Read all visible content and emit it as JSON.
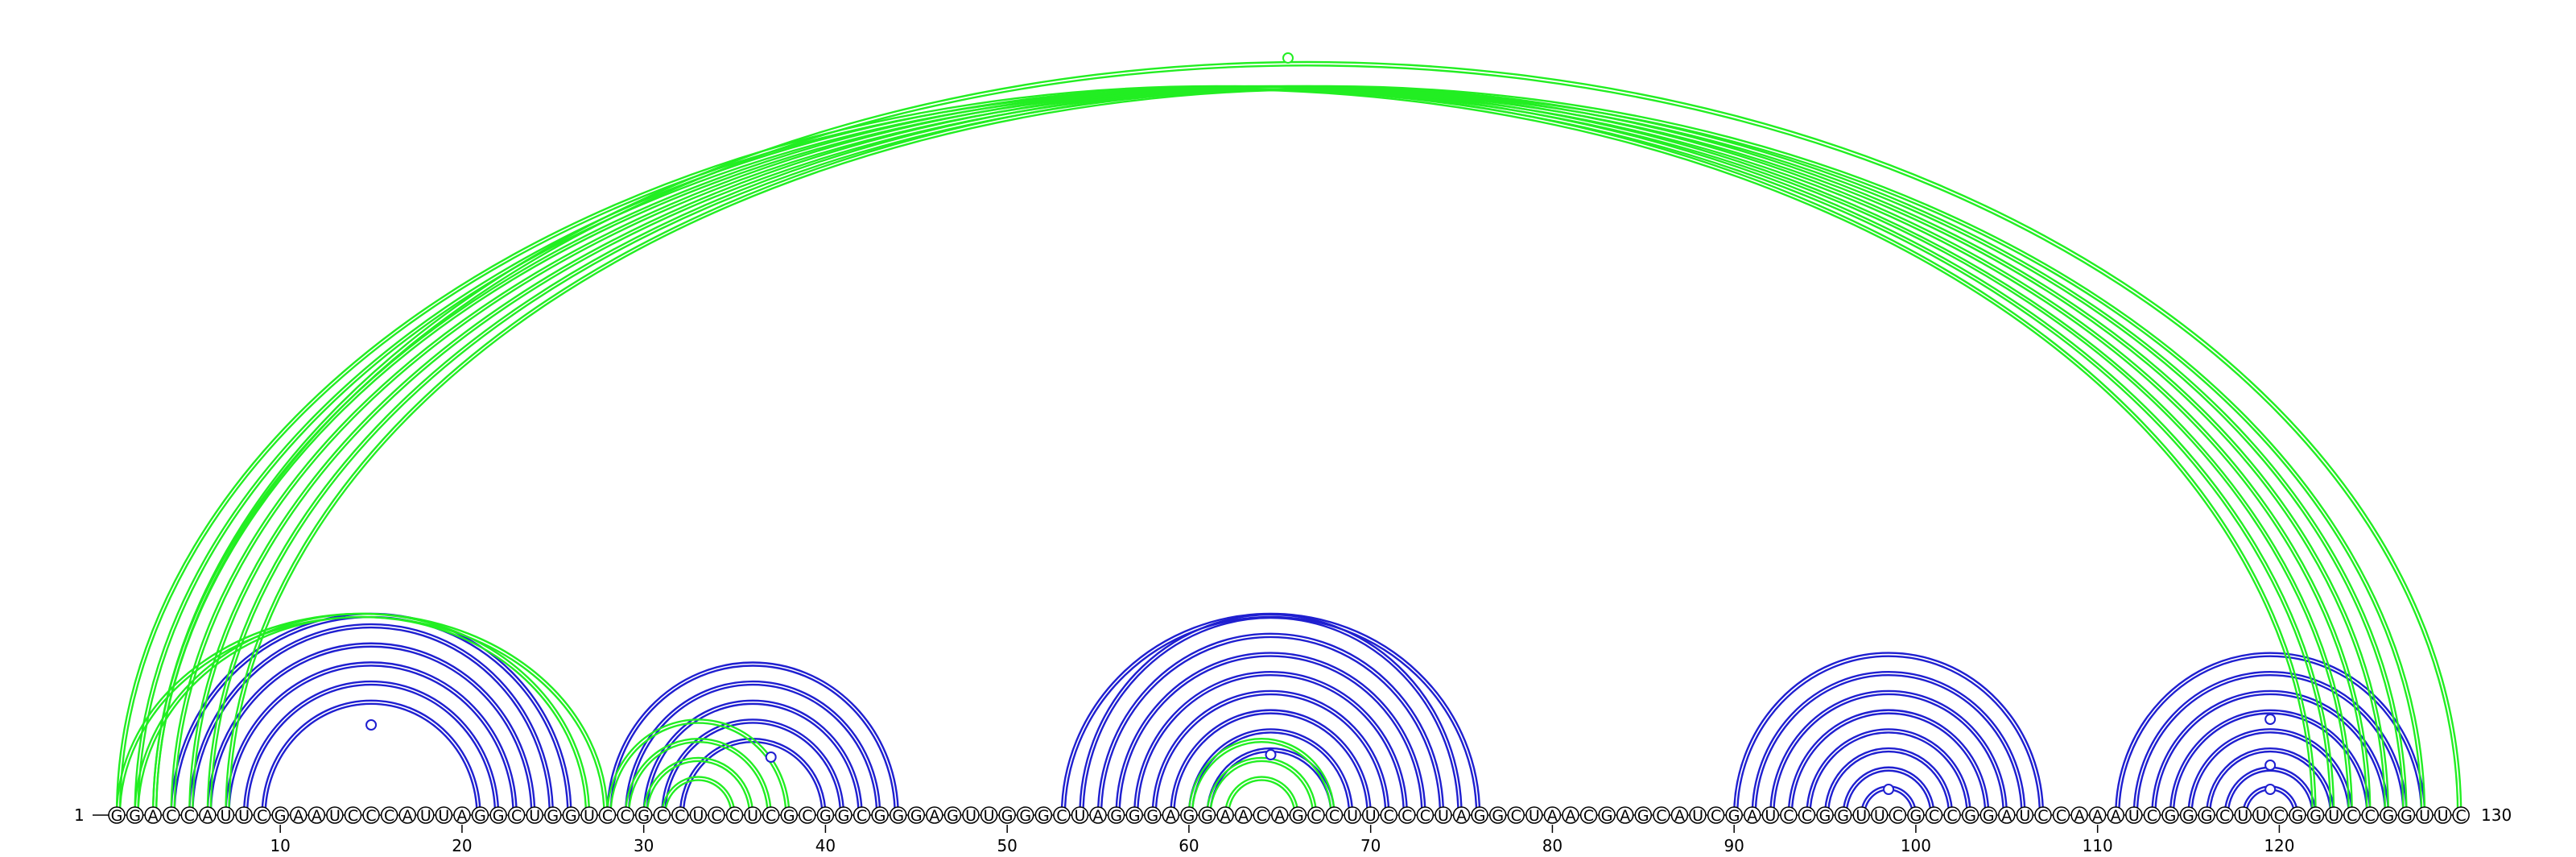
{
  "sequence": "GGACCAUUCGAAUCCCAUUAGGCUGGUCCGCCUCCUCGCGGCGGGAGUUGGGCUAGGGAGGAACAGCCUUCCCUAGGCUAACGAGCAUCGAUCCGGUUCGCCGGAUCCAAAUCGGGCUUCGGUCCGGUUC",
  "start_label": "1",
  "end_label": "130",
  "ticks": [
    "10",
    "20",
    "30",
    "40",
    "50",
    "60",
    "70",
    "80",
    "90",
    "100",
    "110",
    "120"
  ],
  "colors": {
    "blue": "#1f1fd0",
    "green": "#22ee22"
  },
  "chart_data": {
    "type": "arc-diagram",
    "length": 130,
    "blue_pairs": [
      [
        4,
        26
      ],
      [
        5,
        25
      ],
      [
        6,
        24
      ],
      [
        7,
        23
      ],
      [
        8,
        22
      ],
      [
        9,
        21
      ],
      [
        28,
        44
      ],
      [
        29,
        43
      ],
      [
        30,
        42
      ],
      [
        31,
        41
      ],
      [
        32,
        40
      ],
      [
        53,
        76
      ],
      [
        54,
        75
      ],
      [
        55,
        74
      ],
      [
        56,
        73
      ],
      [
        57,
        72
      ],
      [
        58,
        71
      ],
      [
        59,
        70
      ],
      [
        60,
        69
      ],
      [
        61,
        68
      ],
      [
        90,
        107
      ],
      [
        91,
        106
      ],
      [
        92,
        105
      ],
      [
        93,
        104
      ],
      [
        94,
        103
      ],
      [
        95,
        102
      ],
      [
        96,
        101
      ],
      [
        97,
        100
      ],
      [
        111,
        128
      ],
      [
        112,
        127
      ],
      [
        113,
        126
      ],
      [
        114,
        125
      ],
      [
        115,
        124
      ],
      [
        116,
        123
      ],
      [
        117,
        122
      ],
      [
        118,
        121
      ]
    ],
    "green_pairs": [
      [
        1,
        122
      ],
      [
        2,
        123
      ],
      [
        3,
        124
      ],
      [
        4,
        125
      ],
      [
        5,
        126
      ],
      [
        6,
        127
      ],
      [
        7,
        128
      ],
      [
        1,
        28
      ],
      [
        2,
        27
      ],
      [
        28,
        38
      ],
      [
        29,
        37
      ],
      [
        30,
        36
      ],
      [
        31,
        35
      ],
      [
        60,
        68
      ],
      [
        61,
        67
      ],
      [
        62,
        66
      ],
      [
        3,
        130
      ]
    ],
    "loop_markers": [
      {
        "pos": 15,
        "color": "blue"
      },
      {
        "pos": 37,
        "color": "blue"
      },
      {
        "pos": 64.5,
        "color": "blue"
      },
      {
        "pos": 98.5,
        "color": "blue"
      },
      {
        "pos": 119.5,
        "color": "blue"
      },
      {
        "pos": 119.5,
        "color": "blue"
      },
      {
        "pos": 119.5,
        "color": "blue"
      },
      {
        "pos": 65.5,
        "color": "green"
      }
    ]
  }
}
